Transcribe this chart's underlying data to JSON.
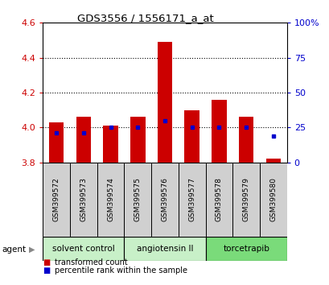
{
  "title": "GDS3556 / 1556171_a_at",
  "samples": [
    "GSM399572",
    "GSM399573",
    "GSM399574",
    "GSM399575",
    "GSM399576",
    "GSM399577",
    "GSM399578",
    "GSM399579",
    "GSM399580"
  ],
  "bar_bottom": 3.8,
  "bar_tops": [
    4.03,
    4.06,
    4.01,
    4.06,
    4.49,
    4.1,
    4.16,
    4.06,
    3.82
  ],
  "blue_dots": [
    3.97,
    3.97,
    4.0,
    4.0,
    4.04,
    4.0,
    4.0,
    4.0,
    3.95
  ],
  "ylim_left": [
    3.8,
    4.6
  ],
  "ylim_right": [
    0,
    100
  ],
  "yticks_left": [
    3.8,
    4.0,
    4.2,
    4.4,
    4.6
  ],
  "yticks_right": [
    0,
    25,
    50,
    75,
    100
  ],
  "grid_lines": [
    4.0,
    4.2,
    4.4
  ],
  "group_configs": [
    {
      "label": "solvent control",
      "start": 0,
      "end": 2,
      "color": "#c8f0c8"
    },
    {
      "label": "angiotensin II",
      "start": 3,
      "end": 5,
      "color": "#c8f0c8"
    },
    {
      "label": "torcetrapib",
      "start": 6,
      "end": 8,
      "color": "#7adb7a"
    }
  ],
  "bar_color": "#cc0000",
  "dot_color": "#0000cc",
  "sample_cell_color": "#d0d0d0",
  "bg_color": "#ffffff",
  "tick_color_left": "#cc0000",
  "tick_color_right": "#0000cc",
  "agent_label": "agent",
  "legend_items": [
    {
      "label": "transformed count",
      "color": "#cc0000"
    },
    {
      "label": "percentile rank within the sample",
      "color": "#0000cc"
    }
  ]
}
